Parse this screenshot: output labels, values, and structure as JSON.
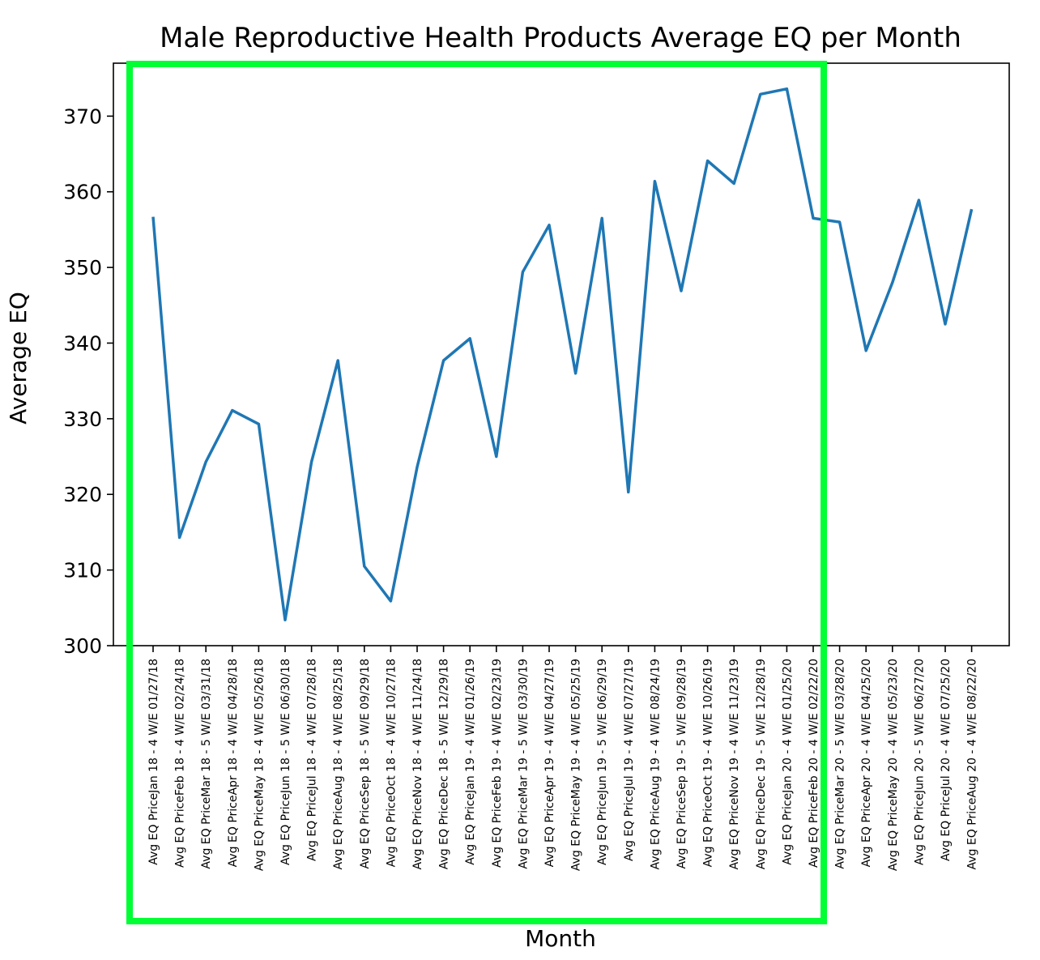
{
  "chart_data": {
    "type": "line",
    "title": "Male Reproductive Health Products Average EQ per Month",
    "xlabel": "Month",
    "ylabel": "Average EQ",
    "ylim": [
      300,
      377
    ],
    "yticks": [
      300,
      310,
      320,
      330,
      340,
      350,
      360,
      370
    ],
    "grid": false,
    "line_color": "#1f77b4",
    "highlight_color": "#00ff33",
    "highlight_range": [
      "Avg EQ PriceJan 18 - 4 W/E 01/27/18",
      "Avg EQ PriceFeb 20 - 4 W/E 02/22/20"
    ],
    "categories": [
      "Avg EQ PriceJan 18 - 4 W/E 01/27/18",
      "Avg EQ PriceFeb 18 - 4 W/E 02/24/18",
      "Avg EQ PriceMar 18 - 5 W/E 03/31/18",
      "Avg EQ PriceApr 18 - 4 W/E 04/28/18",
      "Avg EQ PriceMay 18 - 4 W/E 05/26/18",
      "Avg EQ PriceJun 18 - 5 W/E 06/30/18",
      "Avg EQ PriceJul 18 - 4 W/E 07/28/18",
      "Avg EQ PriceAug 18 - 4 W/E 08/25/18",
      "Avg EQ PriceSep 18 - 5 W/E 09/29/18",
      "Avg EQ PriceOct 18 - 4 W/E 10/27/18",
      "Avg EQ PriceNov 18 - 4 W/E 11/24/18",
      "Avg EQ PriceDec 18 - 5 W/E 12/29/18",
      "Avg EQ PriceJan 19 - 4 W/E 01/26/19",
      "Avg EQ PriceFeb 19 - 4 W/E 02/23/19",
      "Avg EQ PriceMar 19 - 5 W/E 03/30/19",
      "Avg EQ PriceApr 19 - 4 W/E 04/27/19",
      "Avg EQ PriceMay 19 - 4 W/E 05/25/19",
      "Avg EQ PriceJun 19 - 5 W/E 06/29/19",
      "Avg EQ PriceJul 19 - 4 W/E 07/27/19",
      "Avg EQ PriceAug 19 - 4 W/E 08/24/19",
      "Avg EQ PriceSep 19 - 5 W/E 09/28/19",
      "Avg EQ PriceOct 19 - 4 W/E 10/26/19",
      "Avg EQ PriceNov 19 - 4 W/E 11/23/19",
      "Avg EQ PriceDec 19 - 5 W/E 12/28/19",
      "Avg EQ PriceJan 20 - 4 W/E 01/25/20",
      "Avg EQ PriceFeb 20 - 4 W/E 02/22/20",
      "Avg EQ PriceMar 20 - 5 W/E 03/28/20",
      "Avg EQ PriceApr 20 - 4 W/E 04/25/20",
      "Avg EQ PriceMay 20 - 4 W/E 05/23/20",
      "Avg EQ PriceJun 20 - 5 W/E 06/27/20",
      "Avg EQ PriceJul 20 - 4 W/E 07/25/20",
      "Avg EQ PriceAug 20 - 4 W/E 08/22/20"
    ],
    "values": [
      356.7,
      314.3,
      324.3,
      331.1,
      329.3,
      303.4,
      324.3,
      337.7,
      310.5,
      305.9,
      323.6,
      337.7,
      340.6,
      325.0,
      349.4,
      355.6,
      336.0,
      356.5,
      320.3,
      361.4,
      346.9,
      364.1,
      361.1,
      372.9,
      373.6,
      356.5,
      356.0,
      339.0,
      348.0,
      358.9,
      342.5,
      357.7
    ]
  }
}
